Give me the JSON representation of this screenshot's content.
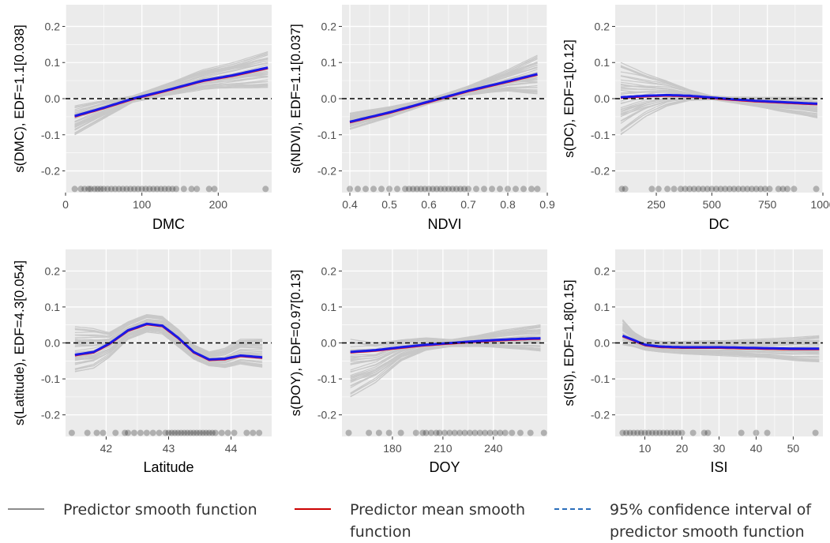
{
  "colors": {
    "panel_bg": "#ebebeb",
    "grid": "#ffffff",
    "sample_curve": "#c8c8c8",
    "mean_curve": "#ff0000",
    "fit_curve": "#1a1ae6",
    "zero_line": "#000000",
    "rug_points": "#000000"
  },
  "chart_data": [
    {
      "type": "line",
      "title": "",
      "xlabel": "DMC",
      "ylabel": "s(DMC), EDF=1.1[0.038]",
      "xlim": [
        0,
        270
      ],
      "ylim": [
        -0.26,
        0.26
      ],
      "xticks": [
        0,
        100,
        200
      ],
      "xtick_labels": [
        "0",
        "100",
        "200"
      ],
      "yticks": [
        -0.2,
        -0.1,
        0.0,
        0.1,
        0.2
      ],
      "ytick_labels": [
        "-0.2",
        "-0.1",
        "0.0",
        "0.1",
        "0.2"
      ],
      "zero_line": 0,
      "fit": {
        "x": [
          12,
          50,
          88,
          130,
          180,
          220,
          265
        ],
        "y": [
          -0.048,
          -0.025,
          0.0,
          0.022,
          0.05,
          0.065,
          0.086
        ]
      },
      "band": {
        "x": [
          12,
          50,
          88,
          130,
          180,
          220,
          265
        ],
        "lower": [
          -0.1,
          -0.055,
          -0.01,
          0.008,
          0.025,
          0.028,
          0.028
        ],
        "upper": [
          -0.02,
          -0.005,
          0.008,
          0.04,
          0.08,
          0.1,
          0.13
        ]
      },
      "rug": {
        "y": -0.25,
        "x": [
          12,
          20,
          25,
          30,
          33,
          38,
          42,
          46,
          50,
          55,
          60,
          65,
          70,
          75,
          80,
          85,
          90,
          95,
          100,
          105,
          110,
          115,
          120,
          125,
          130,
          135,
          140,
          145,
          155,
          165,
          172,
          188,
          195,
          262
        ]
      }
    },
    {
      "type": "line",
      "title": "",
      "xlabel": "NDVI",
      "ylabel": "s(NDVI), EDF=1.1[0.037]",
      "xlim": [
        0.38,
        0.9
      ],
      "ylim": [
        -0.26,
        0.26
      ],
      "xticks": [
        0.4,
        0.5,
        0.6,
        0.7,
        0.8,
        0.9
      ],
      "xtick_labels": [
        "0.4",
        "0.5",
        "0.6",
        "0.7",
        "0.8",
        "0.9"
      ],
      "yticks": [
        -0.2,
        -0.1,
        0.0,
        0.1,
        0.2
      ],
      "ytick_labels": [
        "-0.2",
        "-0.1",
        "0.0",
        "0.1",
        "0.2"
      ],
      "zero_line": 0,
      "fit": {
        "x": [
          0.4,
          0.5,
          0.6,
          0.7,
          0.8,
          0.875
        ],
        "y": [
          -0.064,
          -0.038,
          -0.008,
          0.022,
          0.048,
          0.068
        ]
      },
      "band": {
        "x": [
          0.4,
          0.5,
          0.6,
          0.7,
          0.8,
          0.875
        ],
        "lower": [
          -0.085,
          -0.052,
          -0.015,
          0.01,
          0.02,
          0.01
        ],
        "upper": [
          -0.04,
          -0.022,
          0.0,
          0.035,
          0.08,
          0.12
        ]
      },
      "rug": {
        "y": -0.25,
        "x": [
          0.4,
          0.42,
          0.44,
          0.46,
          0.48,
          0.5,
          0.52,
          0.54,
          0.55,
          0.56,
          0.57,
          0.58,
          0.59,
          0.6,
          0.61,
          0.62,
          0.63,
          0.64,
          0.65,
          0.66,
          0.67,
          0.68,
          0.69,
          0.7,
          0.72,
          0.74,
          0.76,
          0.78,
          0.8,
          0.82,
          0.84,
          0.86,
          0.875
        ]
      }
    },
    {
      "type": "line",
      "title": "",
      "xlabel": "DC",
      "ylabel": "s(DC), EDF=1[0.12]",
      "xlim": [
        65,
        1000
      ],
      "ylim": [
        -0.26,
        0.26
      ],
      "xticks": [
        250,
        500,
        750,
        1000
      ],
      "xtick_labels": [
        "250",
        "500",
        "750",
        "1000"
      ],
      "yticks": [
        -0.2,
        -0.1,
        0.0,
        0.1,
        0.2
      ],
      "ytick_labels": [
        "-0.2",
        "-0.1",
        "0.0",
        "0.1",
        "0.2"
      ],
      "zero_line": 0,
      "fit": {
        "x": [
          90,
          200,
          300,
          400,
          500,
          600,
          700,
          800,
          900,
          975
        ],
        "y": [
          0.004,
          0.008,
          0.01,
          0.008,
          0.003,
          -0.002,
          -0.006,
          -0.009,
          -0.012,
          -0.014
        ]
      },
      "band": {
        "x": [
          90,
          200,
          300,
          400,
          500,
          600,
          700,
          800,
          900,
          975
        ],
        "lower": [
          -0.1,
          -0.05,
          -0.02,
          -0.005,
          -0.003,
          -0.012,
          -0.022,
          -0.035,
          -0.045,
          -0.055
        ],
        "upper": [
          0.1,
          0.07,
          0.05,
          0.025,
          0.008,
          0.005,
          0.004,
          0.004,
          0.004,
          0.002
        ]
      },
      "rug": {
        "y": -0.25,
        "x": [
          95,
          110,
          230,
          260,
          300,
          330,
          360,
          380,
          400,
          420,
          440,
          460,
          480,
          500,
          520,
          540,
          560,
          580,
          600,
          620,
          640,
          660,
          680,
          700,
          720,
          740,
          760,
          800,
          820,
          840,
          870,
          970
        ]
      }
    },
    {
      "type": "line",
      "title": "",
      "xlabel": "Latitude",
      "ylabel": "s(Latitude), EDF=4.3[0.054]",
      "xlim": [
        41.35,
        44.65
      ],
      "ylim": [
        -0.26,
        0.26
      ],
      "xticks": [
        42,
        43,
        44
      ],
      "xtick_labels": [
        "42",
        "43",
        "44"
      ],
      "yticks": [
        -0.2,
        -0.1,
        0.0,
        0.1,
        0.2
      ],
      "ytick_labels": [
        "-0.2",
        "-0.1",
        "0.0",
        "0.1",
        "0.2"
      ],
      "zero_line": 0,
      "fit": {
        "x": [
          41.5,
          41.8,
          42.05,
          42.35,
          42.65,
          42.9,
          43.15,
          43.4,
          43.65,
          43.9,
          44.15,
          44.5
        ],
        "y": [
          -0.033,
          -0.025,
          -0.002,
          0.035,
          0.053,
          0.048,
          0.015,
          -0.025,
          -0.046,
          -0.044,
          -0.035,
          -0.04
        ]
      },
      "band": {
        "x": [
          41.5,
          41.8,
          42.05,
          42.35,
          42.65,
          42.9,
          43.15,
          43.4,
          43.65,
          43.9,
          44.15,
          44.5
        ],
        "lower": [
          -0.08,
          -0.07,
          -0.04,
          0.01,
          0.03,
          0.025,
          -0.01,
          -0.045,
          -0.065,
          -0.07,
          -0.06,
          -0.07
        ],
        "upper": [
          0.045,
          0.04,
          0.03,
          0.06,
          0.08,
          0.075,
          0.04,
          -0.005,
          -0.025,
          -0.015,
          0.01,
          0.01
        ]
      },
      "rug": {
        "y": -0.25,
        "x": [
          41.45,
          41.7,
          41.85,
          41.95,
          42.15,
          42.3,
          42.35,
          42.45,
          42.55,
          42.65,
          42.75,
          42.85,
          42.95,
          43.0,
          43.05,
          43.1,
          43.15,
          43.2,
          43.25,
          43.3,
          43.35,
          43.4,
          43.45,
          43.5,
          43.55,
          43.6,
          43.65,
          43.7,
          43.75,
          43.85,
          43.95,
          44.05,
          44.25,
          44.35,
          44.45
        ]
      }
    },
    {
      "type": "line",
      "title": "",
      "xlabel": "DOY",
      "ylabel": "s(DOY), EDF=0.97[0.13]",
      "xlim": [
        150,
        272
      ],
      "ylim": [
        -0.26,
        0.26
      ],
      "xticks": [
        180,
        210,
        240
      ],
      "xtick_labels": [
        "180",
        "210",
        "240"
      ],
      "yticks": [
        -0.2,
        -0.1,
        0.0,
        0.1,
        0.2
      ],
      "ytick_labels": [
        "-0.2",
        "-0.1",
        "0.0",
        "0.1",
        "0.2"
      ],
      "zero_line": 0,
      "fit": {
        "x": [
          155,
          170,
          185,
          200,
          215,
          230,
          245,
          260,
          268
        ],
        "y": [
          -0.025,
          -0.02,
          -0.012,
          -0.005,
          0.0,
          0.005,
          0.009,
          0.012,
          0.013
        ]
      },
      "band": {
        "x": [
          155,
          170,
          185,
          200,
          215,
          230,
          245,
          260,
          268
        ],
        "lower": [
          -0.15,
          -0.11,
          -0.05,
          -0.02,
          -0.01,
          -0.01,
          -0.015,
          -0.02,
          -0.025
        ],
        "upper": [
          0.01,
          0.0,
          0.01,
          0.015,
          0.01,
          0.02,
          0.035,
          0.045,
          0.05
        ]
      },
      "rug": {
        "y": -0.25,
        "x": [
          154,
          166,
          172,
          178,
          185,
          194,
          198,
          200,
          203,
          206,
          208,
          211,
          214,
          217,
          220,
          223,
          226,
          229,
          232,
          235,
          238,
          241,
          244,
          247,
          251,
          256,
          262,
          270
        ]
      }
    },
    {
      "type": "line",
      "title": "",
      "xlabel": "ISI",
      "ylabel": "s(ISI), EDF=1.8[0.15]",
      "xlim": [
        2,
        58
      ],
      "ylim": [
        -0.26,
        0.26
      ],
      "xticks": [
        10,
        20,
        30,
        40,
        50
      ],
      "xtick_labels": [
        "10",
        "20",
        "30",
        "40",
        "50"
      ],
      "yticks": [
        -0.2,
        -0.1,
        0.0,
        0.1,
        0.2
      ],
      "ytick_labels": [
        "-0.2",
        "-0.1",
        "0.0",
        "0.1",
        "0.2"
      ],
      "zero_line": 0,
      "fit": {
        "x": [
          4,
          7,
          10,
          14,
          20,
          30,
          40,
          50,
          57
        ],
        "y": [
          0.02,
          0.008,
          -0.005,
          -0.01,
          -0.012,
          -0.012,
          -0.014,
          -0.016,
          -0.016
        ]
      },
      "band": {
        "x": [
          4,
          7,
          10,
          14,
          20,
          30,
          40,
          50,
          57
        ],
        "lower": [
          -0.005,
          -0.01,
          -0.02,
          -0.025,
          -0.03,
          -0.035,
          -0.04,
          -0.05,
          -0.055
        ],
        "upper": [
          0.065,
          0.03,
          0.012,
          0.005,
          0.005,
          0.008,
          0.01,
          0.015,
          0.02
        ]
      },
      "rug": {
        "y": -0.25,
        "x": [
          4,
          5,
          6,
          7,
          8,
          9,
          10,
          11,
          12,
          13,
          14,
          15,
          16,
          17,
          18,
          19,
          20,
          23,
          26,
          27,
          36,
          40,
          43,
          56
        ]
      }
    }
  ],
  "legend": {
    "items": [
      {
        "label": "Predictor smooth function",
        "color": "#8c8c8c",
        "style": "solid"
      },
      {
        "label": "Predictor mean smooth function",
        "color": "#cc0000",
        "style": "solid"
      },
      {
        "label": "95% confidence interval of predictor smooth function",
        "color": "#2a6ebb",
        "style": "dashed"
      }
    ]
  }
}
